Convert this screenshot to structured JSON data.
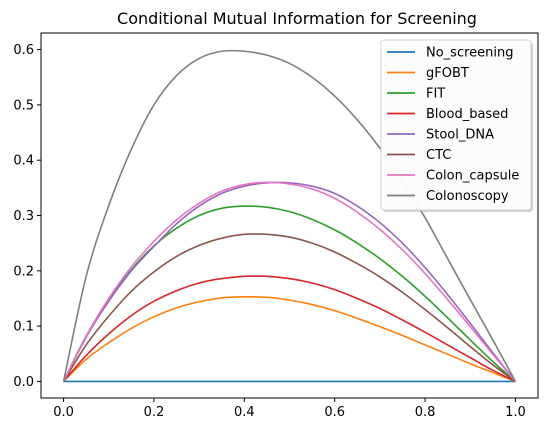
{
  "chart_data": {
    "type": "line",
    "title": "Conditional Mutual Information for Screening",
    "xlabel": "",
    "ylabel": "",
    "xlim": [
      -0.05,
      1.05
    ],
    "ylim": [
      -0.03,
      0.63
    ],
    "xticks": [
      0.0,
      0.2,
      0.4,
      0.6,
      0.8,
      1.0
    ],
    "xtick_labels": [
      "0.0",
      "0.2",
      "0.4",
      "0.6",
      "0.8",
      "1.0"
    ],
    "yticks": [
      0.0,
      0.1,
      0.2,
      0.3,
      0.4,
      0.5,
      0.6
    ],
    "ytick_labels": [
      "0.0",
      "0.1",
      "0.2",
      "0.3",
      "0.4",
      "0.5",
      "0.6"
    ],
    "grid": false,
    "legend_position": "top-right",
    "x": [
      0.0,
      0.05,
      0.1,
      0.15,
      0.2,
      0.25,
      0.3,
      0.35,
      0.4,
      0.45,
      0.5,
      0.55,
      0.6,
      0.65,
      0.7,
      0.75,
      0.8,
      0.85,
      0.9,
      0.95,
      1.0
    ],
    "series": [
      {
        "name": "No_screening",
        "color": "#1f77b4",
        "values": [
          0,
          0,
          0,
          0,
          0,
          0,
          0,
          0,
          0,
          0,
          0,
          0,
          0,
          0,
          0,
          0,
          0,
          0,
          0,
          0,
          0
        ]
      },
      {
        "name": "gFOBT",
        "color": "#ff7f0e",
        "values": [
          0,
          0.04,
          0.07,
          0.096,
          0.117,
          0.133,
          0.144,
          0.151,
          0.153,
          0.152,
          0.147,
          0.139,
          0.128,
          0.114,
          0.099,
          0.083,
          0.066,
          0.049,
          0.032,
          0.016,
          0
        ]
      },
      {
        "name": "FIT",
        "color": "#2ca02c",
        "values": [
          0,
          0.082,
          0.146,
          0.202,
          0.245,
          0.277,
          0.3,
          0.313,
          0.317,
          0.315,
          0.307,
          0.293,
          0.274,
          0.25,
          0.222,
          0.19,
          0.154,
          0.115,
          0.075,
          0.036,
          0
        ]
      },
      {
        "name": "Blood_based",
        "color": "#d62728",
        "values": [
          0,
          0.047,
          0.086,
          0.119,
          0.145,
          0.164,
          0.178,
          0.186,
          0.19,
          0.19,
          0.186,
          0.178,
          0.166,
          0.15,
          0.132,
          0.111,
          0.089,
          0.066,
          0.043,
          0.02,
          0
        ]
      },
      {
        "name": "Stool_DNA",
        "color": "#9467bd",
        "values": [
          0,
          0.08,
          0.145,
          0.2,
          0.244,
          0.285,
          0.317,
          0.34,
          0.353,
          0.359,
          0.359,
          0.353,
          0.34,
          0.317,
          0.287,
          0.25,
          0.206,
          0.157,
          0.105,
          0.052,
          0
        ]
      },
      {
        "name": "CTC",
        "color": "#8c564b",
        "values": [
          0,
          0.066,
          0.118,
          0.163,
          0.198,
          0.226,
          0.246,
          0.259,
          0.266,
          0.266,
          0.261,
          0.25,
          0.234,
          0.213,
          0.189,
          0.161,
          0.13,
          0.097,
          0.063,
          0.03,
          0
        ]
      },
      {
        "name": "Colon_capsule",
        "color": "#e377c2",
        "values": [
          0,
          0.082,
          0.15,
          0.207,
          0.253,
          0.292,
          0.322,
          0.344,
          0.356,
          0.36,
          0.357,
          0.348,
          0.331,
          0.306,
          0.275,
          0.238,
          0.195,
          0.148,
          0.099,
          0.049,
          0
        ]
      },
      {
        "name": "Colonoscopy",
        "color": "#7f7f7f",
        "values": [
          0,
          0.19,
          0.318,
          0.42,
          0.5,
          0.553,
          0.584,
          0.597,
          0.597,
          0.59,
          0.575,
          0.55,
          0.516,
          0.473,
          0.422,
          0.363,
          0.296,
          0.222,
          0.148,
          0.075,
          0
        ]
      }
    ]
  }
}
